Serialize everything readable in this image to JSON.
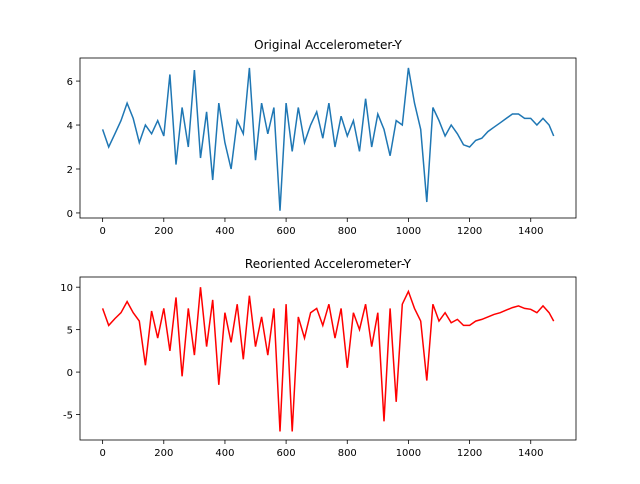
{
  "chart_data": [
    {
      "type": "line",
      "title": "Original Accelerometer-Y",
      "color": "#1f77b4",
      "x": [
        0,
        20,
        40,
        60,
        80,
        100,
        120,
        140,
        160,
        180,
        200,
        220,
        240,
        260,
        280,
        300,
        320,
        340,
        360,
        380,
        400,
        420,
        440,
        460,
        480,
        500,
        520,
        540,
        560,
        580,
        600,
        620,
        640,
        660,
        680,
        700,
        720,
        740,
        760,
        780,
        800,
        820,
        840,
        860,
        880,
        900,
        920,
        940,
        960,
        980,
        1000,
        1020,
        1040,
        1060,
        1080,
        1100,
        1120,
        1140,
        1160,
        1180,
        1200,
        1220,
        1240,
        1260,
        1280,
        1300,
        1320,
        1340,
        1360,
        1380,
        1400,
        1420,
        1440,
        1460,
        1475
      ],
      "values": [
        3.8,
        3.0,
        3.6,
        4.2,
        5.0,
        4.3,
        3.2,
        4.0,
        3.6,
        4.2,
        3.5,
        6.3,
        2.2,
        4.8,
        3.0,
        6.5,
        2.5,
        4.6,
        1.5,
        5.0,
        3.2,
        2.0,
        4.2,
        3.6,
        6.6,
        2.4,
        5.0,
        3.6,
        4.8,
        0.1,
        5.0,
        2.8,
        4.8,
        3.2,
        4.0,
        4.6,
        3.4,
        5.0,
        3.0,
        4.4,
        3.5,
        4.2,
        2.8,
        5.2,
        3.0,
        4.5,
        3.8,
        2.6,
        4.2,
        4.0,
        6.6,
        5.0,
        3.8,
        0.5,
        4.8,
        4.2,
        3.5,
        4.0,
        3.6,
        3.1,
        3.0,
        3.3,
        3.4,
        3.7,
        3.9,
        4.1,
        4.3,
        4.5,
        4.5,
        4.3,
        4.3,
        4.0,
        4.3,
        4.0,
        3.5
      ],
      "xlim": [
        -74,
        1548
      ],
      "ylim": [
        -0.23,
        7.05
      ],
      "xticks": [
        0,
        200,
        400,
        600,
        800,
        1000,
        1200,
        1400
      ],
      "yticks": [
        0,
        2,
        4,
        6
      ]
    },
    {
      "type": "line",
      "title": "Reoriented Accelerometer-Y",
      "color": "#ff0000",
      "x": [
        0,
        20,
        40,
        60,
        80,
        100,
        120,
        140,
        160,
        180,
        200,
        220,
        240,
        260,
        280,
        300,
        320,
        340,
        360,
        380,
        400,
        420,
        440,
        460,
        480,
        500,
        520,
        540,
        560,
        580,
        600,
        620,
        640,
        660,
        680,
        700,
        720,
        740,
        760,
        780,
        800,
        820,
        840,
        860,
        880,
        900,
        920,
        940,
        960,
        980,
        1000,
        1020,
        1040,
        1060,
        1080,
        1100,
        1120,
        1140,
        1160,
        1180,
        1200,
        1220,
        1240,
        1260,
        1280,
        1300,
        1320,
        1340,
        1360,
        1380,
        1400,
        1420,
        1440,
        1460,
        1475
      ],
      "values": [
        7.5,
        5.5,
        6.3,
        7.0,
        8.3,
        7.0,
        6.0,
        0.8,
        7.2,
        4.0,
        7.5,
        2.5,
        8.8,
        -0.5,
        7.5,
        2.0,
        10.0,
        3.0,
        8.5,
        -1.5,
        7.0,
        3.5,
        8.0,
        1.5,
        9.0,
        3.0,
        6.5,
        2.0,
        7.5,
        -7.0,
        8.0,
        -7.0,
        6.5,
        4.0,
        7.0,
        7.5,
        5.5,
        8.0,
        4.0,
        7.5,
        0.5,
        7.0,
        5.0,
        8.0,
        3.0,
        7.0,
        -5.8,
        7.5,
        -3.5,
        8.0,
        9.5,
        7.5,
        6.0,
        -1.0,
        8.0,
        6.0,
        7.0,
        5.8,
        6.2,
        5.5,
        5.5,
        6.0,
        6.2,
        6.5,
        6.8,
        7.0,
        7.3,
        7.6,
        7.8,
        7.5,
        7.4,
        7.0,
        7.8,
        7.0,
        6.0
      ],
      "xlim": [
        -74,
        1548
      ],
      "ylim": [
        -8,
        11.2
      ],
      "xticks": [
        0,
        200,
        400,
        600,
        800,
        1000,
        1200,
        1400
      ],
      "yticks": [
        -5,
        0,
        5,
        10
      ]
    }
  ]
}
